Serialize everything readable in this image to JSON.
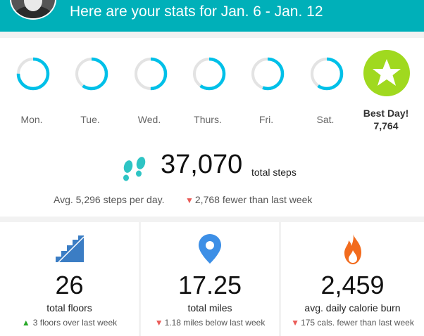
{
  "header": {
    "title": "Here are your stats for Jan. 6 - Jan. 12",
    "bg_color": "#00b0b9"
  },
  "days": [
    {
      "label": "Mon.",
      "progress": 0.75
    },
    {
      "label": "Tue.",
      "progress": 0.6
    },
    {
      "label": "Wed.",
      "progress": 0.5
    },
    {
      "label": "Thurs.",
      "progress": 0.6
    },
    {
      "label": "Fri.",
      "progress": 0.55
    },
    {
      "label": "Sat.",
      "progress": 0.6
    }
  ],
  "best_day": {
    "label": "Best Day!",
    "value": "7,764",
    "color": "#a0d91f"
  },
  "steps": {
    "value": "37,070",
    "label": "total steps",
    "avg": "Avg. 5,296 steps per day.",
    "change": "2,768 fewer than last week"
  },
  "cards": [
    {
      "icon": "stairs-icon",
      "value": "26",
      "label": "total floors",
      "change": "3 floors over last week",
      "direction": "up"
    },
    {
      "icon": "location-pin-icon",
      "value": "17.25",
      "label": "total miles",
      "change": "1.18 miles below last week",
      "direction": "down"
    },
    {
      "icon": "flame-icon",
      "value": "2,459",
      "label": "avg. daily calorie burn",
      "change": "175 cals. fewer than last week",
      "direction": "down"
    }
  ],
  "colors": {
    "ring": "#00c0e8",
    "ring_track": "#e3e3e3",
    "down": "#ea5b57",
    "up": "#27a827",
    "stairs": "#3b7dc4",
    "pin": "#3d8fe6",
    "flame": "#f26b1d"
  }
}
